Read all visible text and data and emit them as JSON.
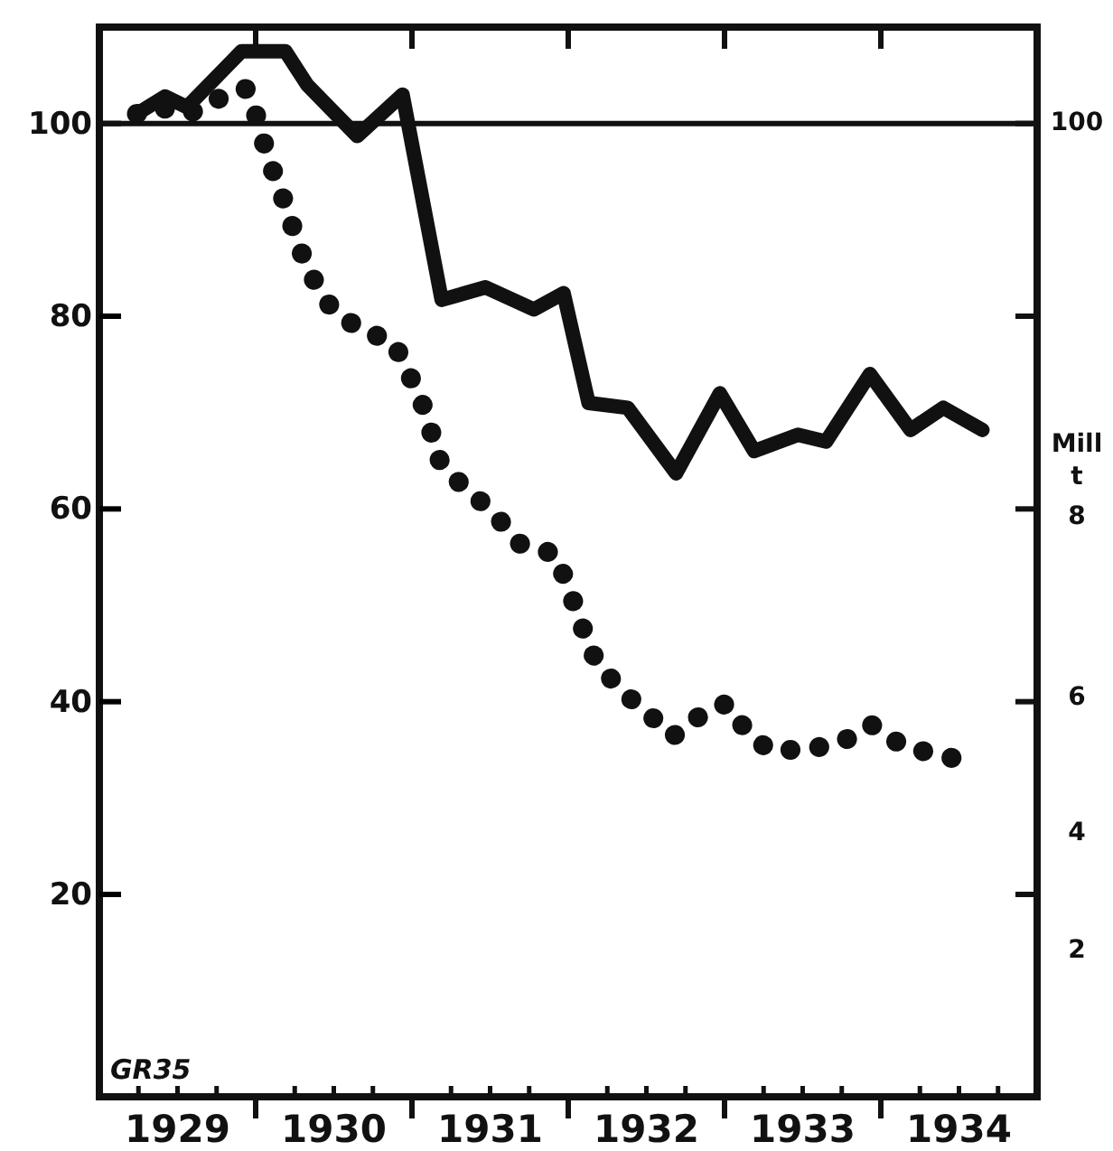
{
  "chart_data": {
    "type": "line",
    "x": [
      1929.24,
      1929.42,
      1929.56,
      1929.91,
      1930.19,
      1930.33,
      1930.65,
      1930.94,
      1931.19,
      1931.47,
      1931.78,
      1931.97,
      1932.13,
      1932.38,
      1932.69,
      1932.97,
      1933.19,
      1933.47,
      1933.65,
      1933.93,
      1934.19,
      1934.4,
      1934.65
    ],
    "series": [
      {
        "color": "#111111",
        "line_style": "solid",
        "values": [
          101,
          102.8,
          101.7,
          107.5,
          107.5,
          104,
          98.7,
          103,
          81.7,
          83,
          80.7,
          82.4,
          71,
          70.5,
          63.7,
          72,
          66,
          67.7,
          67,
          74,
          68.2,
          70.5,
          68.2
        ]
      },
      {
        "color": "#111111",
        "line_style": "dotted",
        "x": [
          1929.24,
          1929.38,
          1929.55,
          1929.69,
          1929.8,
          1929.94,
          1930.0,
          1930.08,
          1930.17,
          1930.25,
          1930.33,
          1930.49,
          1930.68,
          1930.88,
          1931.01,
          1931.1,
          1931.16,
          1931.31,
          1931.51,
          1931.69,
          1931.92,
          1932.01,
          1932.1,
          1932.18,
          1932.35,
          1932.53,
          1932.67,
          1932.84,
          1933.01,
          1933.13,
          1933.28,
          1933.53,
          1933.76,
          1933.94,
          1934.15,
          1934.4,
          1934.6
        ],
        "values": [
          101,
          101.7,
          101,
          101.7,
          103,
          103.6,
          101,
          96.4,
          92.5,
          88.6,
          84.9,
          80.7,
          78.5,
          77.4,
          73,
          69.6,
          65.4,
          62.6,
          59.8,
          56.4,
          55.3,
          51.4,
          47.3,
          44.1,
          41,
          38.5,
          36.4,
          38.5,
          39.8,
          37.2,
          35,
          35,
          35.9,
          37.6,
          35.3,
          34.4,
          33.5
        ]
      }
    ],
    "xlim": [
      1929,
      1935
    ],
    "xticks": [
      {
        "value": 1930,
        "label": null
      },
      {
        "value": 1931,
        "label": null
      },
      {
        "value": 1932,
        "label": null
      },
      {
        "value": 1933,
        "label": null
      },
      {
        "value": 1934,
        "label": null
      },
      {
        "value": 1929.5,
        "label": "1929"
      },
      {
        "value": 1930.5,
        "label": "1930"
      },
      {
        "value": 1931.5,
        "label": "1931"
      },
      {
        "value": 1932.5,
        "label": "1932"
      },
      {
        "value": 1933.5,
        "label": "1933"
      },
      {
        "value": 1934.5,
        "label": "1934"
      }
    ],
    "ylim": [
      -1,
      110
    ],
    "yticks": [
      20,
      40,
      60,
      80,
      100
    ],
    "ref_lines": [
      {
        "axis": "y",
        "value": 100,
        "label": null
      }
    ],
    "grid": false,
    "marker": "none",
    "annotations": [
      "GR35",
      "100",
      "Mill",
      "t",
      "8",
      "6",
      "4",
      "2"
    ]
  }
}
